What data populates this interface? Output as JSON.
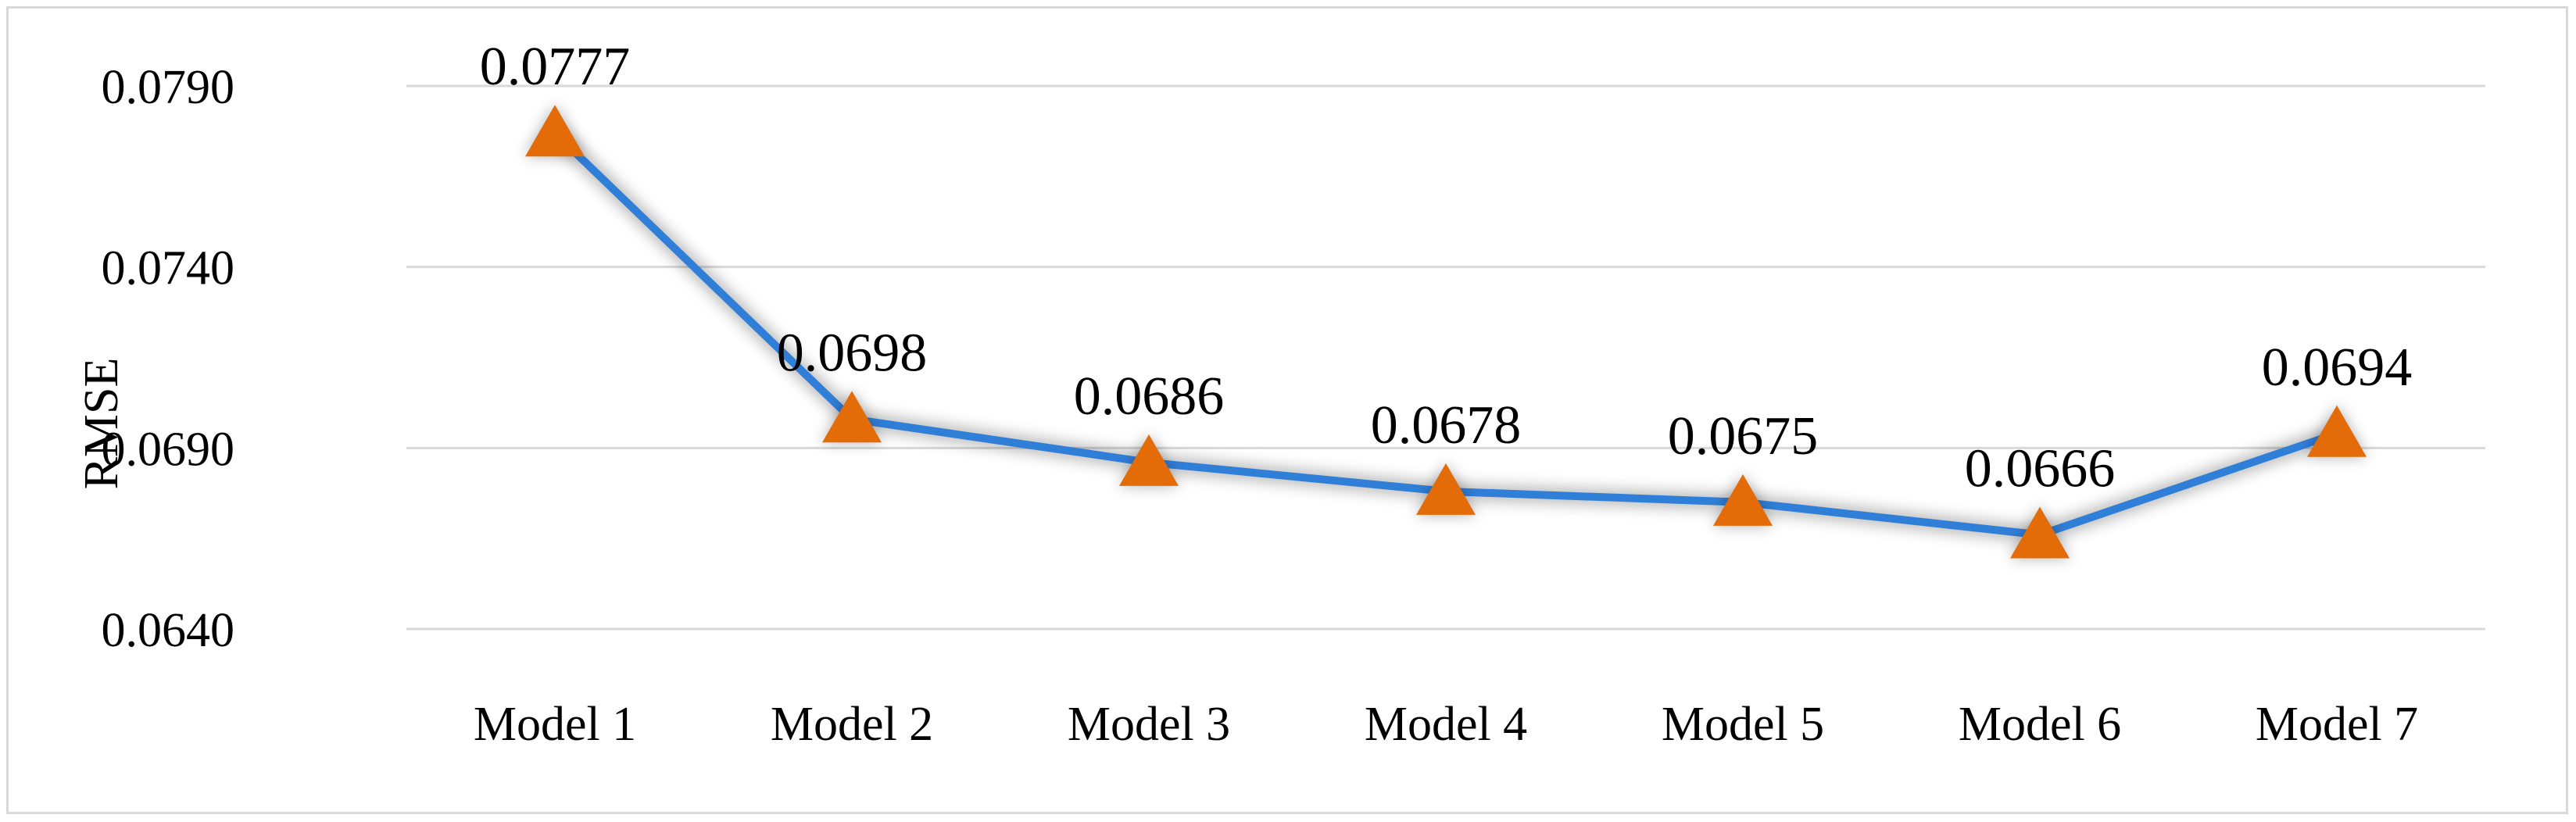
{
  "chart_data": {
    "type": "line",
    "categories": [
      "Model 1",
      "Model 2",
      "Model 3",
      "Model 4",
      "Model 5",
      "Model 6",
      "Model 7"
    ],
    "series": [
      {
        "values": [
          0.0777,
          0.0698,
          0.0686,
          0.0678,
          0.0675,
          0.0666,
          0.0694
        ],
        "labels": [
          "0.0777",
          "0.0698",
          "0.0686",
          "0.0678",
          "0.0675",
          "0.0666",
          "0.0694"
        ],
        "line_color": "#2f7ed8",
        "marker": "triangle",
        "marker_color": "#e36c09"
      }
    ],
    "title": "",
    "xlabel": "",
    "ylabel": "RMSE",
    "ylim": [
      0.064,
      0.079
    ],
    "yticks": [
      0.064,
      0.069,
      0.074,
      0.079
    ],
    "ytick_labels": [
      "0.0640",
      "0.0690",
      "0.0740",
      "0.0790"
    ],
    "grid": true,
    "legend": "none"
  }
}
